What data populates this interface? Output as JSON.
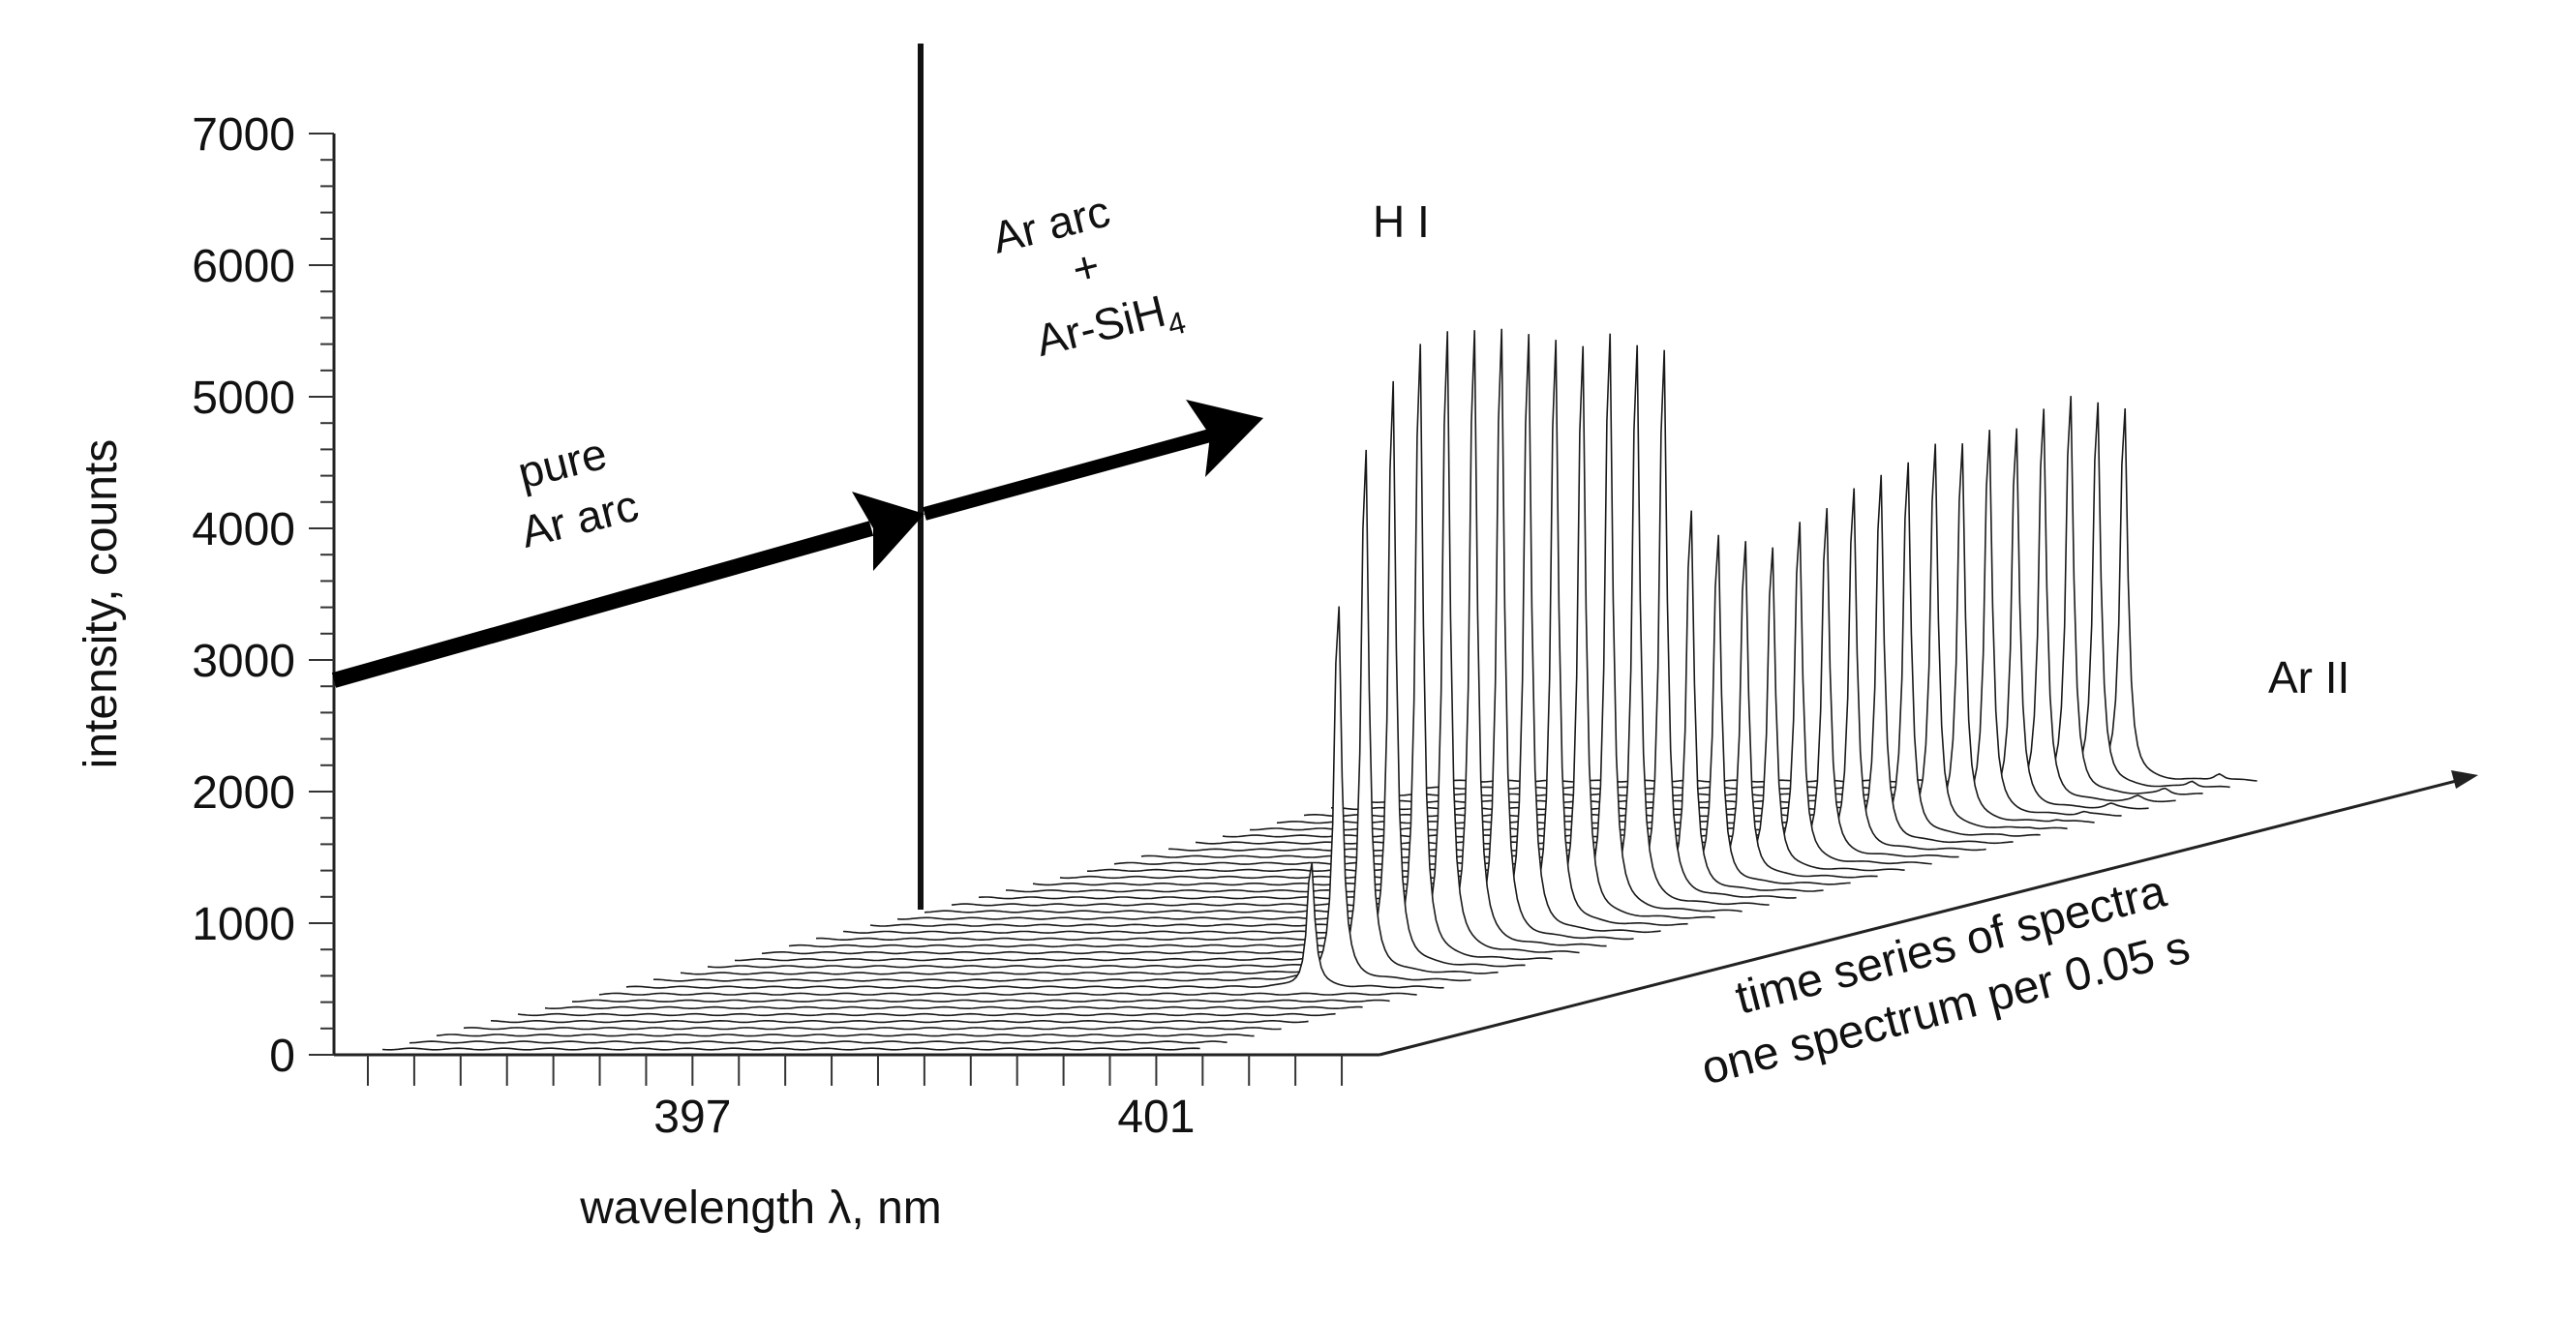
{
  "chart_data": {
    "type": "waterfall-3d-line",
    "y_axis": {
      "label": "intensity, counts",
      "range": [
        0,
        7000
      ],
      "ticks": [
        0,
        1000,
        2000,
        3000,
        4000,
        5000,
        6000,
        7000
      ],
      "minor_step": 200
    },
    "x_axis": {
      "label": "wavelength  λ, nm",
      "range": [
        394.2,
        402.8
      ],
      "labeled_ticks": [
        397,
        401
      ],
      "minor_step": 0.4
    },
    "depth_axis": {
      "label_line1": "time series of spectra",
      "label_line2": "one spectrum per 0.05 s",
      "spectrum_interval_s": 0.05,
      "spectrum_count": 40
    },
    "series": [
      {
        "name": "H I",
        "peak_wavelength_nm": 401.4,
        "peak_counts": [
          1000,
          3000,
          4200,
          4700,
          4950,
          5000,
          4950,
          4900,
          4800,
          4700,
          4600,
          4650,
          4500,
          4400,
          3050,
          2800,
          2700,
          2600,
          2750,
          2800,
          2900,
          2950,
          3000,
          3100,
          3050,
          3100,
          3050,
          3150,
          3200,
          3100,
          3000
        ],
        "onset_spectrum_index": 9
      },
      {
        "name": "Ar II",
        "peak_wavelength_nm": 401.4,
        "approx_peak_counts": 60
      }
    ],
    "annotations": [
      {
        "text_line1": "pure",
        "text_line2": "Ar arc"
      },
      {
        "text_line1": "Ar arc",
        "text_line2": "+",
        "text_line3_main": "Ar-SiH",
        "text_line3_sub": "4"
      }
    ],
    "peak_labels": {
      "h_line": "H I",
      "ar_line": "Ar II"
    },
    "colors": {
      "line": "#1a1a1a",
      "background": "#ffffff"
    }
  }
}
